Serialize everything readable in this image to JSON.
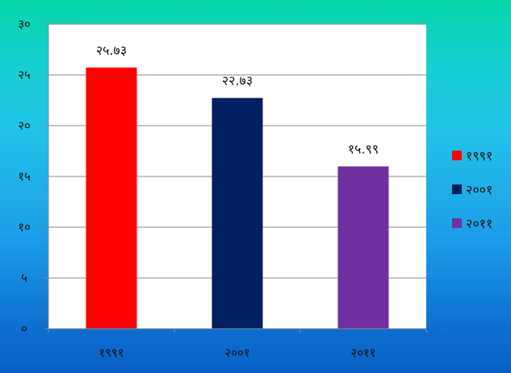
{
  "chart_data": {
    "type": "bar",
    "categories": [
      "१९९१",
      "२००१",
      "२०११"
    ],
    "values": [
      25.73,
      22.73,
      15.99
    ],
    "value_labels": [
      "२५.७३",
      "२२.७३",
      "१५.९९"
    ],
    "ylim": [
      0,
      30
    ],
    "yticks": [
      0,
      5,
      10,
      15,
      20,
      25,
      30
    ],
    "ytick_labels": [
      "०",
      "५",
      "१०",
      "१५",
      "२०",
      "२५",
      "३०"
    ],
    "colors": [
      "#ff0000",
      "#002060",
      "#7030a0"
    ],
    "legend": {
      "position": "right",
      "entries": [
        "१९९१",
        "२००१",
        "२०११"
      ]
    },
    "grid": true
  }
}
